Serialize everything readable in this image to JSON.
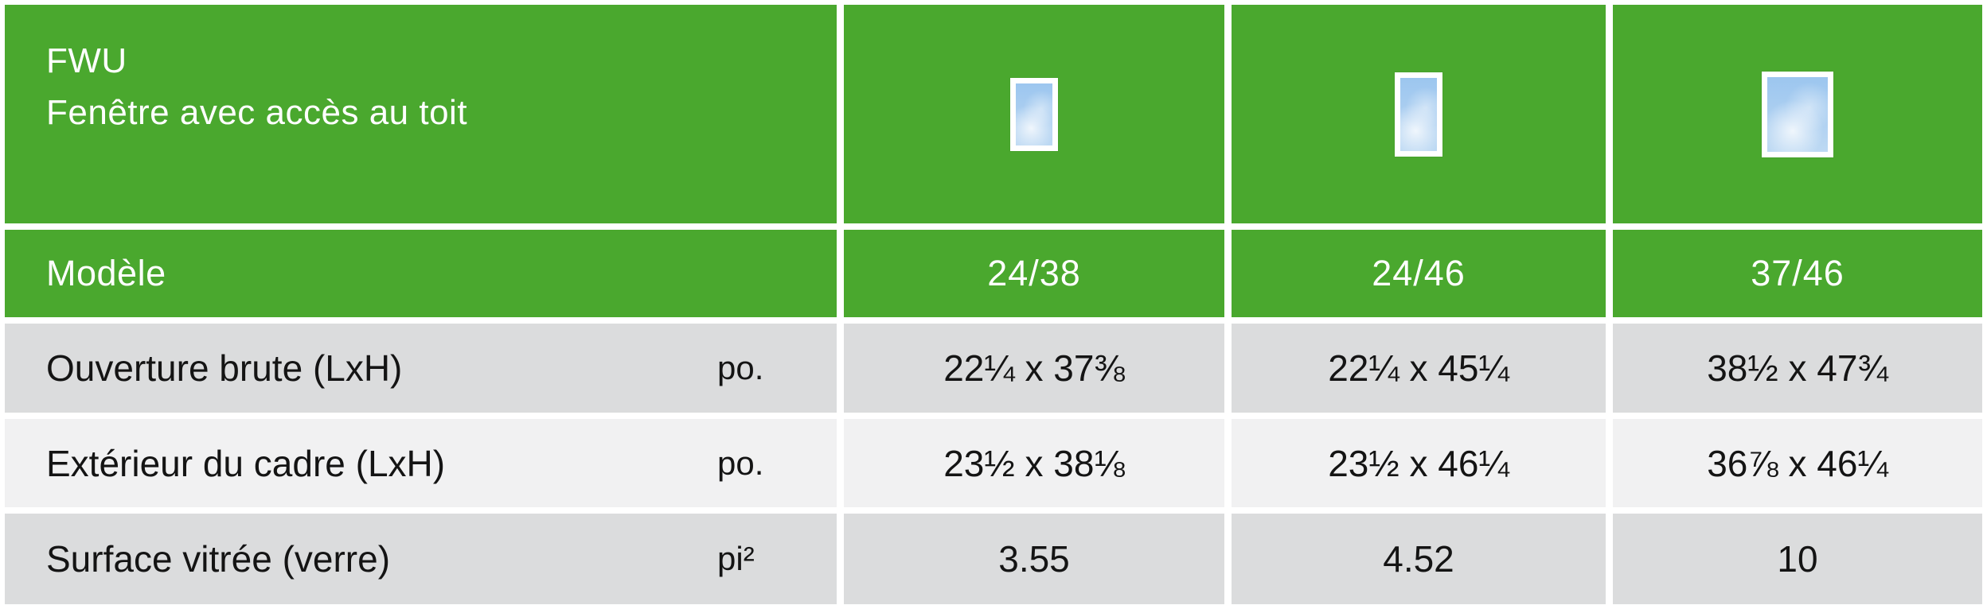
{
  "product": {
    "code": "FWU",
    "name": "Fenêtre avec accès au toit"
  },
  "model_row": {
    "label": "Modèle",
    "models": [
      "24/38",
      "24/46",
      "37/46"
    ]
  },
  "spec_rows": [
    {
      "label": "Ouverture brute (LxH)",
      "unit": "po.",
      "values": [
        "22¼ x 37⅜",
        "22¼ x 45¼",
        "38½ x 47¾"
      ]
    },
    {
      "label": "Extérieur du cadre (LxH)",
      "unit": "po.",
      "values": [
        "23½ x 38⅛",
        "23½ x 46¼",
        "36⅞ x 46¼"
      ]
    },
    {
      "label": "Surface vitrée (verre)",
      "unit": "pi²",
      "values": [
        "3.55",
        "4.52",
        "10"
      ]
    }
  ],
  "icons": [
    {
      "name": "window-icon-24-38"
    },
    {
      "name": "window-icon-24-46"
    },
    {
      "name": "window-icon-37-46"
    }
  ],
  "colors": {
    "brand_green": "#4aa82e",
    "row_dark_gray": "#dbdcdd",
    "row_light_gray": "#f1f1f2",
    "text_on_green": "#ffffff",
    "text_on_gray": "#141414",
    "window_sky_blue": "#9cc6ef"
  }
}
